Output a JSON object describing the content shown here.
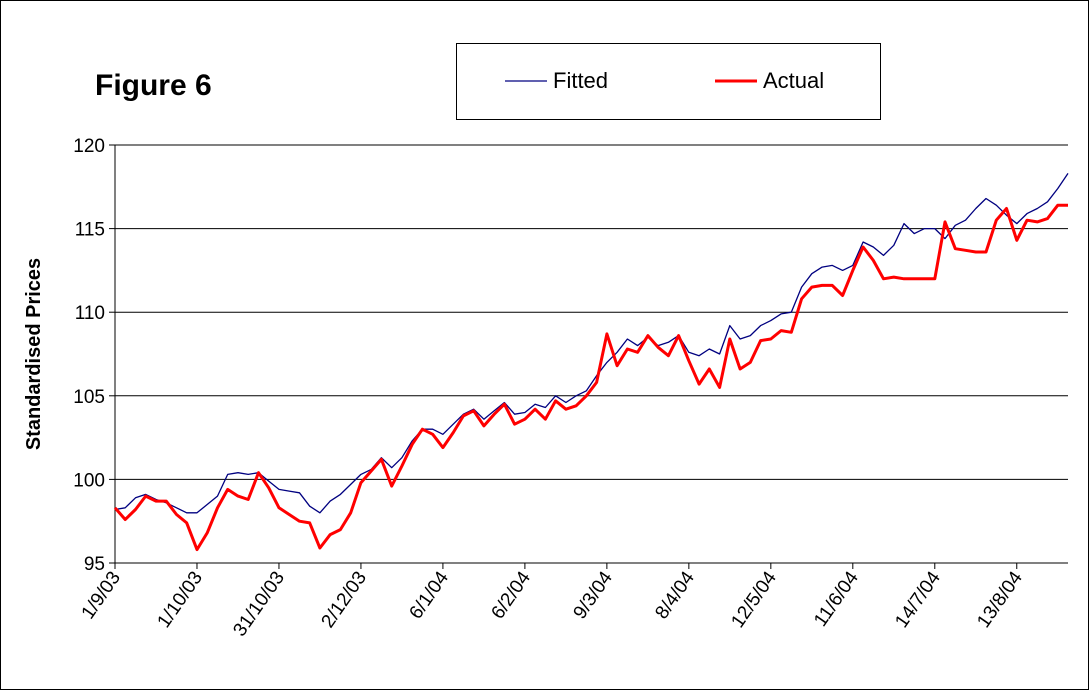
{
  "chart_data": {
    "type": "line",
    "title": "Figure 6",
    "ylabel": "Standardised Prices",
    "categories": [
      "1/9/03",
      null,
      null,
      null,
      null,
      null,
      null,
      null,
      "1/10/03",
      null,
      null,
      null,
      null,
      null,
      null,
      null,
      "31/10/03",
      null,
      null,
      null,
      null,
      null,
      null,
      null,
      "2/12/03",
      null,
      null,
      null,
      null,
      null,
      null,
      null,
      "6/1/04",
      null,
      null,
      null,
      null,
      null,
      null,
      null,
      "6/2/04",
      null,
      null,
      null,
      null,
      null,
      null,
      null,
      "9/3/04",
      null,
      null,
      null,
      null,
      null,
      null,
      null,
      "8/4/04",
      null,
      null,
      null,
      null,
      null,
      null,
      null,
      "12/5/04",
      null,
      null,
      null,
      null,
      null,
      null,
      null,
      "11/6/04",
      null,
      null,
      null,
      null,
      null,
      null,
      null,
      "14/7/04",
      null,
      null,
      null,
      null,
      null,
      null,
      null,
      "13/8/04",
      null,
      null,
      null,
      null,
      null
    ],
    "series": [
      {
        "name": "Fitted",
        "color": "#000080",
        "width": 1.3,
        "values": [
          98.2,
          98.3,
          98.9,
          99.1,
          98.8,
          98.6,
          98.3,
          98.0,
          98.0,
          98.5,
          99.0,
          100.3,
          100.4,
          100.3,
          100.4,
          99.9,
          99.4,
          99.3,
          99.2,
          98.4,
          98.0,
          98.7,
          99.1,
          99.7,
          100.3,
          100.6,
          101.3,
          100.7,
          101.3,
          102.3,
          103.0,
          103.0,
          102.7,
          103.3,
          103.9,
          104.2,
          103.6,
          104.1,
          104.6,
          103.9,
          104.0,
          104.5,
          104.3,
          105.0,
          104.6,
          105.0,
          105.3,
          106.2,
          107.0,
          107.6,
          108.4,
          108.0,
          108.5,
          108.0,
          108.2,
          108.6,
          107.6,
          107.4,
          107.8,
          107.5,
          109.2,
          108.4,
          108.6,
          109.2,
          109.5,
          109.9,
          110.0,
          111.5,
          112.3,
          112.7,
          112.8,
          112.5,
          112.8,
          114.2,
          113.9,
          113.4,
          114.0,
          115.3,
          114.7,
          115.0,
          115.0,
          114.4,
          115.2,
          115.5,
          116.2,
          116.8,
          116.4,
          115.8,
          115.3,
          115.9,
          116.2,
          116.6,
          117.4,
          118.3
        ]
      },
      {
        "name": "Actual",
        "color": "#ff0000",
        "width": 3,
        "values": [
          98.3,
          97.6,
          98.2,
          99.0,
          98.7,
          98.7,
          97.9,
          97.4,
          95.8,
          96.8,
          98.3,
          99.4,
          99.0,
          98.8,
          100.4,
          99.5,
          98.3,
          97.9,
          97.5,
          97.4,
          95.9,
          96.7,
          97.0,
          98.0,
          99.8,
          100.5,
          101.2,
          99.6,
          100.8,
          102.1,
          103.0,
          102.7,
          101.9,
          102.8,
          103.8,
          104.1,
          103.2,
          103.9,
          104.5,
          103.3,
          103.6,
          104.2,
          103.6,
          104.7,
          104.2,
          104.4,
          105.0,
          105.8,
          108.7,
          106.8,
          107.8,
          107.6,
          108.6,
          107.9,
          107.4,
          108.6,
          107.1,
          105.7,
          106.6,
          105.5,
          108.4,
          106.6,
          107.0,
          108.3,
          108.4,
          108.9,
          108.8,
          110.8,
          111.5,
          111.6,
          111.6,
          111.0,
          112.5,
          113.9,
          113.1,
          112.0,
          112.1,
          112.0,
          112.0,
          112.0,
          112.0,
          115.4,
          113.8,
          113.7,
          113.6,
          113.6,
          115.5,
          116.2,
          114.3,
          115.5,
          115.4,
          115.6,
          116.4,
          116.4
        ]
      }
    ],
    "ylim": [
      95,
      120
    ],
    "yticks": [
      95,
      100,
      105,
      110,
      115,
      120
    ],
    "grid": true,
    "legend": "top"
  }
}
